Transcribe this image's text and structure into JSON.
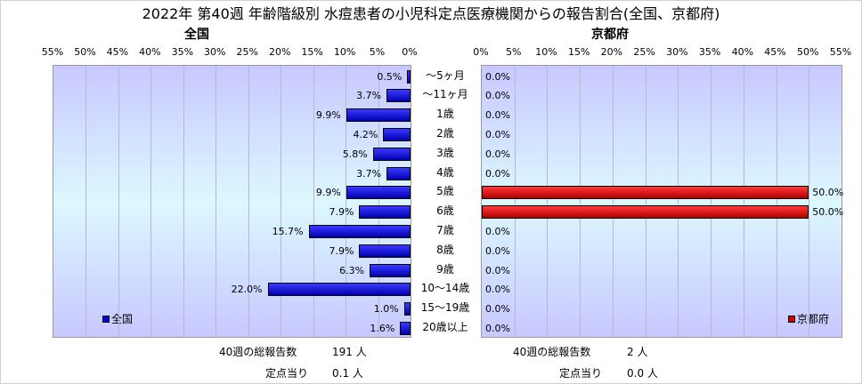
{
  "title": "2022年 第40週 年齢階級別 水痘患者の小児科定点医療機関からの報告割合(全国、京都府)",
  "categories": [
    "～5ヶ月",
    "～11ヶ月",
    "1歳",
    "2歳",
    "3歳",
    "4歳",
    "5歳",
    "6歳",
    "7歳",
    "8歳",
    "9歳",
    "10～14歳",
    "15～19歳",
    "20歳以上"
  ],
  "chart_data": [
    {
      "type": "bar",
      "title": "全国",
      "series": [
        {
          "name": "全国",
          "values": [
            0.5,
            3.7,
            9.9,
            4.2,
            5.8,
            3.7,
            9.9,
            7.9,
            15.7,
            7.9,
            6.3,
            22.0,
            1.0,
            1.6
          ]
        }
      ],
      "value_labels": [
        "0.5%",
        "3.7%",
        "9.9%",
        "4.2%",
        "5.8%",
        "3.7%",
        "9.9%",
        "7.9%",
        "15.7%",
        "7.9%",
        "6.3%",
        "22.0%",
        "1.0%",
        "1.6%"
      ],
      "xlim": [
        0,
        55
      ],
      "x_ticks": [
        "55%",
        "50%",
        "45%",
        "40%",
        "35%",
        "30%",
        "25%",
        "20%",
        "15%",
        "10%",
        "5%",
        "0%"
      ],
      "orientation": "horizontal-reversed",
      "color": "#0000d0",
      "legend_position": "bottom-left",
      "grid": true
    },
    {
      "type": "bar",
      "title": "京都府",
      "series": [
        {
          "name": "京都府",
          "values": [
            0,
            0,
            0,
            0,
            0,
            0,
            50.0,
            50.0,
            0,
            0,
            0,
            0,
            0,
            0
          ]
        }
      ],
      "value_labels": [
        "0.0%",
        "0.0%",
        "0.0%",
        "0.0%",
        "0.0%",
        "0.0%",
        "50.0%",
        "50.0%",
        "0.0%",
        "0.0%",
        "0.0%",
        "0.0%",
        "0.0%",
        "0.0%"
      ],
      "xlim": [
        0,
        55
      ],
      "x_ticks": [
        "0%",
        "5%",
        "10%",
        "15%",
        "20%",
        "25%",
        "30%",
        "35%",
        "40%",
        "45%",
        "50%",
        "55%"
      ],
      "orientation": "horizontal",
      "color": "#d00000",
      "legend_position": "bottom-right",
      "grid": true
    }
  ],
  "footer": {
    "left": {
      "total_label": "40週の総報告数",
      "total_value": "191 人",
      "per_label": "定点当り",
      "per_value": "0.1 人"
    },
    "right": {
      "total_label": "40週の総報告数",
      "total_value": "2 人",
      "per_label": "定点当り",
      "per_value": "0.0 人"
    }
  }
}
